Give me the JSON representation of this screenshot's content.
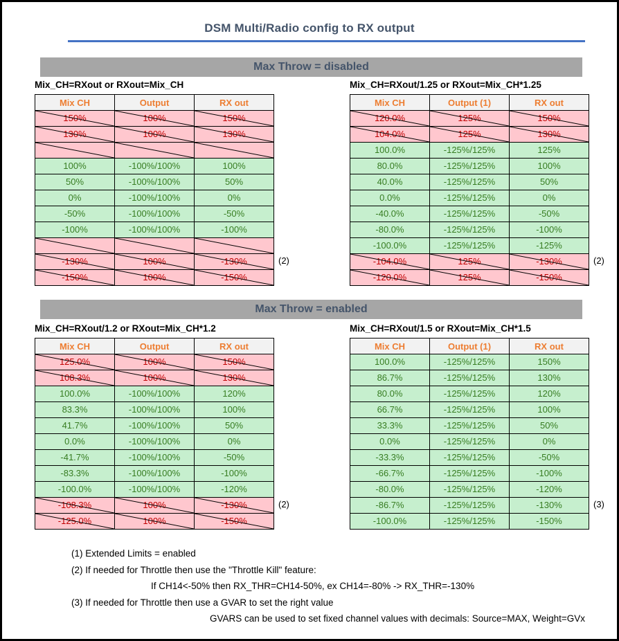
{
  "page_title": "DSM Multi/Radio config to RX output",
  "colors": {
    "accent_blue": "#4472C4",
    "heading_text": "#44546A",
    "section_bar_gray": "#A6A6A6",
    "table_header_bg": "#F2F2F2",
    "table_header_text": "#ED7D31",
    "valid_row_bg": "#C6EFCE",
    "valid_row_text": "#377D22",
    "invalid_row_bg": "#FFC7CE",
    "invalid_row_text": "#C00000"
  },
  "sections": [
    {
      "header": "Max Throw = disabled",
      "tables": [
        {
          "title": "Mix_CH=RXout or RXout=Mix_CH",
          "columns": [
            "Mix CH",
            "Output",
            "RX out"
          ],
          "rows": [
            {
              "cells": [
                "150%",
                "100%",
                "150%"
              ],
              "state": "invalid",
              "note": ""
            },
            {
              "cells": [
                "130%",
                "100%",
                "130%"
              ],
              "state": "invalid",
              "note": ""
            },
            {
              "cells": [
                "",
                "",
                ""
              ],
              "state": "invalid",
              "note": ""
            },
            {
              "cells": [
                "100%",
                "-100%/100%",
                "100%"
              ],
              "state": "valid",
              "note": ""
            },
            {
              "cells": [
                "50%",
                "-100%/100%",
                "50%"
              ],
              "state": "valid",
              "note": ""
            },
            {
              "cells": [
                "0%",
                "-100%/100%",
                "0%"
              ],
              "state": "valid",
              "note": ""
            },
            {
              "cells": [
                "-50%",
                "-100%/100%",
                "-50%"
              ],
              "state": "valid",
              "note": ""
            },
            {
              "cells": [
                "-100%",
                "-100%/100%",
                "-100%"
              ],
              "state": "valid",
              "note": ""
            },
            {
              "cells": [
                "",
                "",
                ""
              ],
              "state": "invalid",
              "note": ""
            },
            {
              "cells": [
                "-130%",
                "100%",
                "-130%"
              ],
              "state": "invalid",
              "note": "(2)"
            },
            {
              "cells": [
                "-150%",
                "100%",
                "-150%"
              ],
              "state": "invalid",
              "note": ""
            }
          ]
        },
        {
          "title": "Mix_CH=RXout/1.25 or RXout=Mix_CH*1.25",
          "columns": [
            "Mix CH",
            "Output (1)",
            "RX out"
          ],
          "rows": [
            {
              "cells": [
                "120.0%",
                "125%",
                "150%"
              ],
              "state": "invalid",
              "note": ""
            },
            {
              "cells": [
                "104.0%",
                "125%",
                "130%"
              ],
              "state": "invalid",
              "note": ""
            },
            {
              "cells": [
                "100.0%",
                "-125%/125%",
                "125%"
              ],
              "state": "valid",
              "note": ""
            },
            {
              "cells": [
                "80.0%",
                "-125%/125%",
                "100%"
              ],
              "state": "valid",
              "note": ""
            },
            {
              "cells": [
                "40.0%",
                "-125%/125%",
                "50%"
              ],
              "state": "valid",
              "note": ""
            },
            {
              "cells": [
                "0.0%",
                "-125%/125%",
                "0%"
              ],
              "state": "valid",
              "note": ""
            },
            {
              "cells": [
                "-40.0%",
                "-125%/125%",
                "-50%"
              ],
              "state": "valid",
              "note": ""
            },
            {
              "cells": [
                "-80.0%",
                "-125%/125%",
                "-100%"
              ],
              "state": "valid",
              "note": ""
            },
            {
              "cells": [
                "-100.0%",
                "-125%/125%",
                "-125%"
              ],
              "state": "valid",
              "note": ""
            },
            {
              "cells": [
                "-104.0%",
                "125%",
                "-130%"
              ],
              "state": "invalid",
              "note": "(2)"
            },
            {
              "cells": [
                "-120.0%",
                "125%",
                "-150%"
              ],
              "state": "invalid",
              "note": ""
            }
          ]
        }
      ]
    },
    {
      "header": "Max Throw = enabled",
      "tables": [
        {
          "title": "Mix_CH=RXout/1.2 or RXout=Mix_CH*1.2",
          "columns": [
            "Mix CH",
            "Output",
            "RX out"
          ],
          "rows": [
            {
              "cells": [
                "125.0%",
                "100%",
                "150%"
              ],
              "state": "invalid",
              "note": ""
            },
            {
              "cells": [
                "108.3%",
                "100%",
                "130%"
              ],
              "state": "invalid",
              "note": ""
            },
            {
              "cells": [
                "100.0%",
                "-100%/100%",
                "120%"
              ],
              "state": "valid",
              "note": ""
            },
            {
              "cells": [
                "83.3%",
                "-100%/100%",
                "100%"
              ],
              "state": "valid",
              "note": ""
            },
            {
              "cells": [
                "41.7%",
                "-100%/100%",
                "50%"
              ],
              "state": "valid",
              "note": ""
            },
            {
              "cells": [
                "0.0%",
                "-100%/100%",
                "0%"
              ],
              "state": "valid",
              "note": ""
            },
            {
              "cells": [
                "-41.7%",
                "-100%/100%",
                "-50%"
              ],
              "state": "valid",
              "note": ""
            },
            {
              "cells": [
                "-83.3%",
                "-100%/100%",
                "-100%"
              ],
              "state": "valid",
              "note": ""
            },
            {
              "cells": [
                "-100.0%",
                "-100%/100%",
                "-120%"
              ],
              "state": "valid",
              "note": ""
            },
            {
              "cells": [
                "-108.3%",
                "100%",
                "-130%"
              ],
              "state": "invalid",
              "note": "(2)"
            },
            {
              "cells": [
                "-125.0%",
                "100%",
                "-150%"
              ],
              "state": "invalid",
              "note": ""
            }
          ]
        },
        {
          "title": "Mix_CH=RXout/1.5 or RXout=Mix_CH*1.5",
          "columns": [
            "Mix CH",
            "Output (1)",
            "RX out"
          ],
          "rows": [
            {
              "cells": [
                "100.0%",
                "-125%/125%",
                "150%"
              ],
              "state": "valid",
              "note": ""
            },
            {
              "cells": [
                "86.7%",
                "-125%/125%",
                "130%"
              ],
              "state": "valid",
              "note": ""
            },
            {
              "cells": [
                "80.0%",
                "-125%/125%",
                "120%"
              ],
              "state": "valid",
              "note": ""
            },
            {
              "cells": [
                "66.7%",
                "-125%/125%",
                "100%"
              ],
              "state": "valid",
              "note": ""
            },
            {
              "cells": [
                "33.3%",
                "-125%/125%",
                "50%"
              ],
              "state": "valid",
              "note": ""
            },
            {
              "cells": [
                "0.0%",
                "-125%/125%",
                "0%"
              ],
              "state": "valid",
              "note": ""
            },
            {
              "cells": [
                "-33.3%",
                "-125%/125%",
                "-50%"
              ],
              "state": "valid",
              "note": ""
            },
            {
              "cells": [
                "-66.7%",
                "-125%/125%",
                "-100%"
              ],
              "state": "valid",
              "note": ""
            },
            {
              "cells": [
                "-80.0%",
                "-125%/125%",
                "-120%"
              ],
              "state": "valid",
              "note": ""
            },
            {
              "cells": [
                "-86.7%",
                "-125%/125%",
                "-130%"
              ],
              "state": "valid",
              "note": "(3)"
            },
            {
              "cells": [
                "-100.0%",
                "-125%/125%",
                "-150%"
              ],
              "state": "valid",
              "note": ""
            }
          ]
        }
      ]
    }
  ],
  "footnotes": [
    {
      "text": "(1) Extended Limits = enabled",
      "indent": 0
    },
    {
      "text": "(2) If needed for Throttle then use the \"Throttle Kill\" feature:",
      "indent": 0
    },
    {
      "text": "If CH14<-50% then RX_THR=CH14-50%, ex CH14=-80% -> RX_THR=-130%",
      "indent": 115
    },
    {
      "text": "(3) If needed for Throttle then use a GVAR to set the right value",
      "indent": 0
    },
    {
      "text": "GVARS can be used to set fixed channel values with decimals: Source=MAX, Weight=GVx",
      "indent": 200
    }
  ]
}
